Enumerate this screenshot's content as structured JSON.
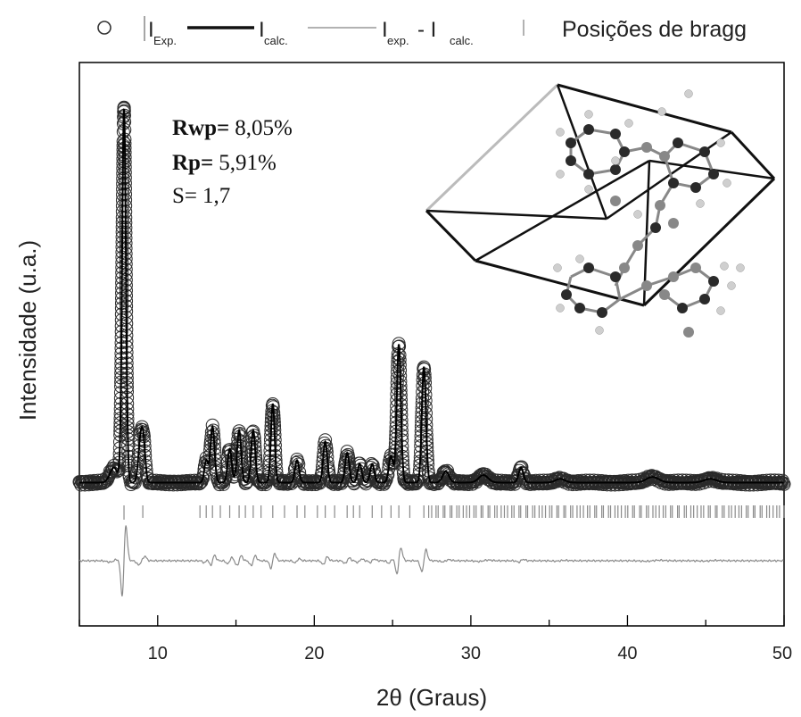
{
  "chart_data": {
    "type": "line",
    "title": "",
    "xlabel": "2θ (Graus)",
    "ylabel": "Intensidade (u.a.)",
    "xlim": [
      5,
      50
    ],
    "xticks": [
      10,
      20,
      30,
      40,
      50
    ],
    "y_ticks_shown": false,
    "legend": {
      "placement": "top",
      "entries": [
        {
          "symbol": "circle",
          "main": "I",
          "sub": "Exp."
        },
        {
          "symbol": "thick-line",
          "main": "I",
          "sub": "calc."
        },
        {
          "symbol": "thin-line",
          "main": "I",
          "sub": "exp.",
          "minus": "- I",
          "sub2": "calc."
        },
        {
          "symbol": "tick",
          "main": "Posições de bragg"
        }
      ]
    },
    "statistics": [
      {
        "label": "Rwp=",
        "value": "8,05%"
      },
      {
        "label": "Rp=",
        "value": "5,91%"
      },
      {
        "label": "S=",
        "value": "1,7"
      }
    ],
    "baseline": 0.03,
    "peaks": [
      {
        "x": 7.2,
        "y": 0.04,
        "w": 0.25
      },
      {
        "x": 7.85,
        "y": 1.0,
        "w": 0.12
      },
      {
        "x": 8.9,
        "y": 0.11,
        "w": 0.14
      },
      {
        "x": 9.1,
        "y": 0.09,
        "w": 0.12
      },
      {
        "x": 13.1,
        "y": 0.06,
        "w": 0.12
      },
      {
        "x": 13.5,
        "y": 0.15,
        "w": 0.13
      },
      {
        "x": 14.6,
        "y": 0.09,
        "w": 0.13
      },
      {
        "x": 15.2,
        "y": 0.14,
        "w": 0.13
      },
      {
        "x": 16.1,
        "y": 0.14,
        "w": 0.13
      },
      {
        "x": 17.35,
        "y": 0.21,
        "w": 0.12
      },
      {
        "x": 18.9,
        "y": 0.06,
        "w": 0.13
      },
      {
        "x": 20.7,
        "y": 0.11,
        "w": 0.13
      },
      {
        "x": 22.1,
        "y": 0.08,
        "w": 0.13
      },
      {
        "x": 22.9,
        "y": 0.05,
        "w": 0.13
      },
      {
        "x": 23.7,
        "y": 0.05,
        "w": 0.13
      },
      {
        "x": 24.9,
        "y": 0.07,
        "w": 0.14
      },
      {
        "x": 25.4,
        "y": 0.37,
        "w": 0.13
      },
      {
        "x": 27.0,
        "y": 0.31,
        "w": 0.13
      },
      {
        "x": 28.4,
        "y": 0.03,
        "w": 0.2
      },
      {
        "x": 30.8,
        "y": 0.02,
        "w": 0.3
      },
      {
        "x": 33.2,
        "y": 0.04,
        "w": 0.15
      },
      {
        "x": 35.7,
        "y": 0.01,
        "w": 0.3
      },
      {
        "x": 41.6,
        "y": 0.015,
        "w": 0.4
      },
      {
        "x": 45.3,
        "y": 0.01,
        "w": 0.4
      }
    ],
    "bragg_positions_major": [
      7.85,
      9.05,
      12.7,
      13.1,
      13.5,
      14.0,
      14.6,
      15.2,
      15.6,
      16.1,
      16.6,
      17.35,
      18.1,
      18.9,
      19.4,
      20.2,
      20.7,
      21.3,
      22.1,
      22.5,
      22.9,
      23.7,
      24.3,
      24.9,
      25.4,
      26.1,
      27.0
    ],
    "bragg_positions_dense_from": 27.3,
    "bragg_positions_dense_to": 50.0,
    "bragg_positions_dense_step": 0.22,
    "colors": {
      "experimental": "#2a2a2a",
      "calculated": "#000000",
      "difference": "#8a8a8a",
      "bragg": "#8a8a8a",
      "axis": "#000000"
    }
  }
}
